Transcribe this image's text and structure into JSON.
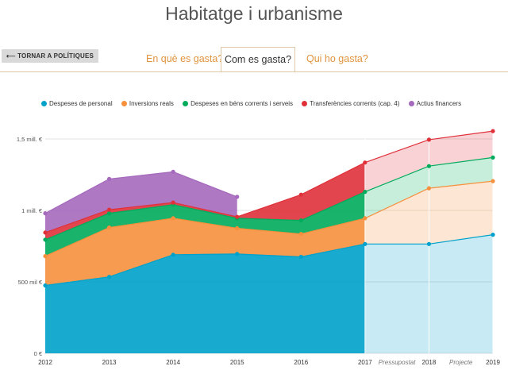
{
  "page": {
    "title": "Habitatge i urbanisme"
  },
  "nav": {
    "back_label": "⟵ TORNAR A POLÍTIQUES",
    "tabs": [
      {
        "label": "En què es gasta?",
        "active": false
      },
      {
        "label": "Com es gasta?",
        "active": true
      },
      {
        "label": "Qui ho gasta?",
        "active": false
      }
    ]
  },
  "colors": {
    "personal": "#00a1cb",
    "inversions": "#f6903d",
    "bens": "#00ab5c",
    "transferencies": "#e0313b",
    "financers": "#a569bd",
    "tab_accent": "#e0943f",
    "tab_border": "#e0c9a6"
  },
  "chart_data": {
    "type": "area",
    "stacked": true,
    "x": [
      "2012",
      "2013",
      "2014",
      "2015",
      "2016",
      "2017",
      "2018",
      "2019"
    ],
    "x_annotations": [
      {
        "from": "2017",
        "to": "2018",
        "label": "Pressupostat"
      },
      {
        "from": "2018",
        "to": "2019",
        "label": "Projecte"
      }
    ],
    "projected_from": "2017",
    "y_ticks": [
      "0 €",
      "500 mil €",
      "1 mill. €",
      "1,5 mill. €"
    ],
    "ylim": [
      0,
      1500000
    ],
    "legend_position": "top-left",
    "series": [
      {
        "name": "Despeses de personal",
        "color_key": "personal",
        "values": [
          475000,
          535000,
          690000,
          695000,
          675000,
          765000,
          765000,
          830000
        ]
      },
      {
        "name": "Inversions reals",
        "color_key": "inversions",
        "values": [
          205000,
          345000,
          255000,
          180000,
          160000,
          180000,
          390000,
          375000
        ]
      },
      {
        "name": "Despeses en béns corrents i serveis",
        "color_key": "bens",
        "values": [
          115000,
          100000,
          95000,
          70000,
          95000,
          185000,
          155000,
          165000
        ]
      },
      {
        "name": "Transferències corrents (cap. 4)",
        "color_key": "transferencies",
        "values": [
          50000,
          25000,
          15000,
          10000,
          180000,
          205000,
          185000,
          185000
        ]
      },
      {
        "name": "Actius financers",
        "color_key": "financers",
        "values": [
          135000,
          215000,
          215000,
          140000,
          0,
          0,
          0,
          0
        ]
      }
    ]
  }
}
